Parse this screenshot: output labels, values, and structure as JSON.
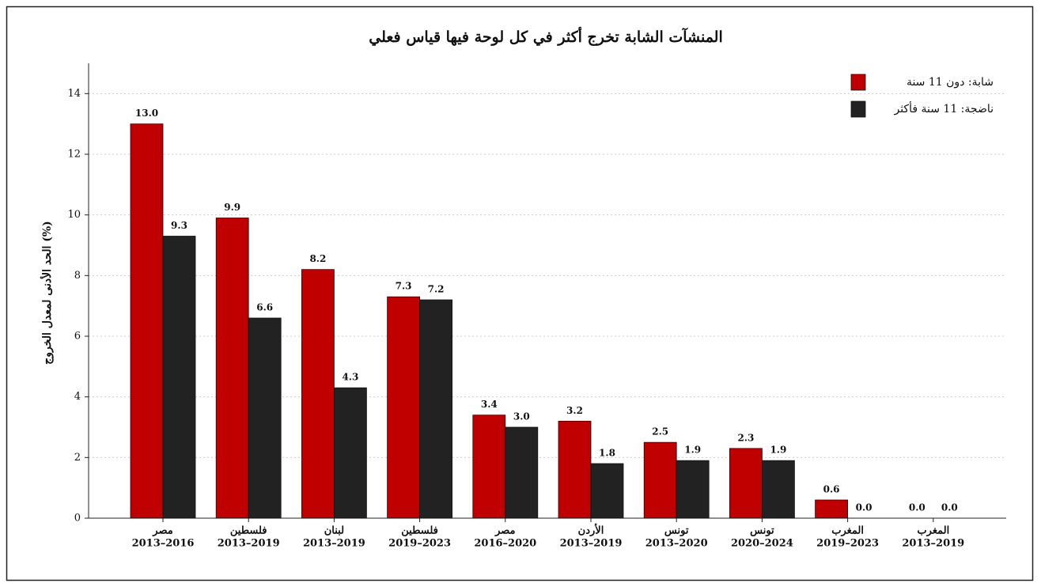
{
  "chart_data": {
    "type": "bar",
    "title": "المنشآت الشابة تخرج أكثر في كل لوحة فيها قياس فعلي",
    "y_label": "الحد الأدنى لمعدل الخروج (%)",
    "categories": [
      [
        "مصر",
        "2013–2016"
      ],
      [
        "فلسطين",
        "2013–2019"
      ],
      [
        "لبنان",
        "2013–2019"
      ],
      [
        "فلسطين",
        "2019–2023"
      ],
      [
        "مصر",
        "2016–2020"
      ],
      [
        "الأردن",
        "2013–2019"
      ],
      [
        "تونس",
        "2013–2020"
      ],
      [
        "تونس",
        "2020–2024"
      ],
      [
        "المغرب",
        "2019–2023"
      ],
      [
        "المغرب",
        "2013–2019"
      ]
    ],
    "series": [
      {
        "name": "شابة: دون 11 سنة",
        "color": "#c00000",
        "values": [
          13.0,
          9.9,
          8.2,
          7.3,
          3.4,
          3.2,
          2.5,
          2.3,
          0.6,
          0.0
        ],
        "value_labels": [
          "13.0",
          "9.9",
          "8.2",
          "7.3",
          "3.4",
          "3.2",
          "2.5",
          "2.3",
          "0.6",
          "0.0"
        ]
      },
      {
        "name": "ناضجة: 11 سنة فأكثر",
        "color": "#222222",
        "values": [
          9.3,
          6.6,
          4.3,
          7.2,
          3.0,
          1.8,
          1.9,
          1.9,
          0.0,
          0.0
        ],
        "value_labels": [
          "9.3",
          "6.6",
          "4.3",
          "7.2",
          "3.0",
          "1.8",
          "1.9",
          "1.9",
          "0.0",
          "0.0"
        ]
      }
    ],
    "ylim": [
      0,
      15
    ],
    "yticks": [
      0,
      2,
      4,
      6,
      8,
      10,
      12,
      14
    ],
    "grid": true,
    "legend": "upper right"
  }
}
